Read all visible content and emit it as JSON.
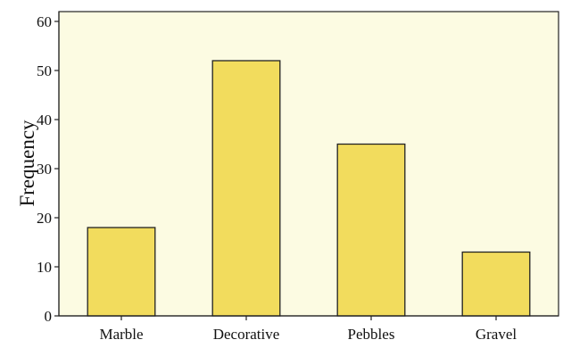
{
  "chart_data": {
    "type": "bar",
    "title": "",
    "xlabel": "",
    "ylabel": "Frequency",
    "categories": [
      "Marble",
      "Decorative",
      "Pebbles",
      "Gravel"
    ],
    "values": [
      18,
      52,
      35,
      13
    ],
    "ylim": [
      0,
      62
    ],
    "yticks": [
      0,
      10,
      20,
      30,
      40,
      50,
      60
    ],
    "grid": false,
    "legend": "none",
    "colors": {
      "bar_fill": "#f2dc5d",
      "bar_stroke": "#222222",
      "plot_background": "#fcfbe2",
      "axis": "#222222"
    }
  }
}
